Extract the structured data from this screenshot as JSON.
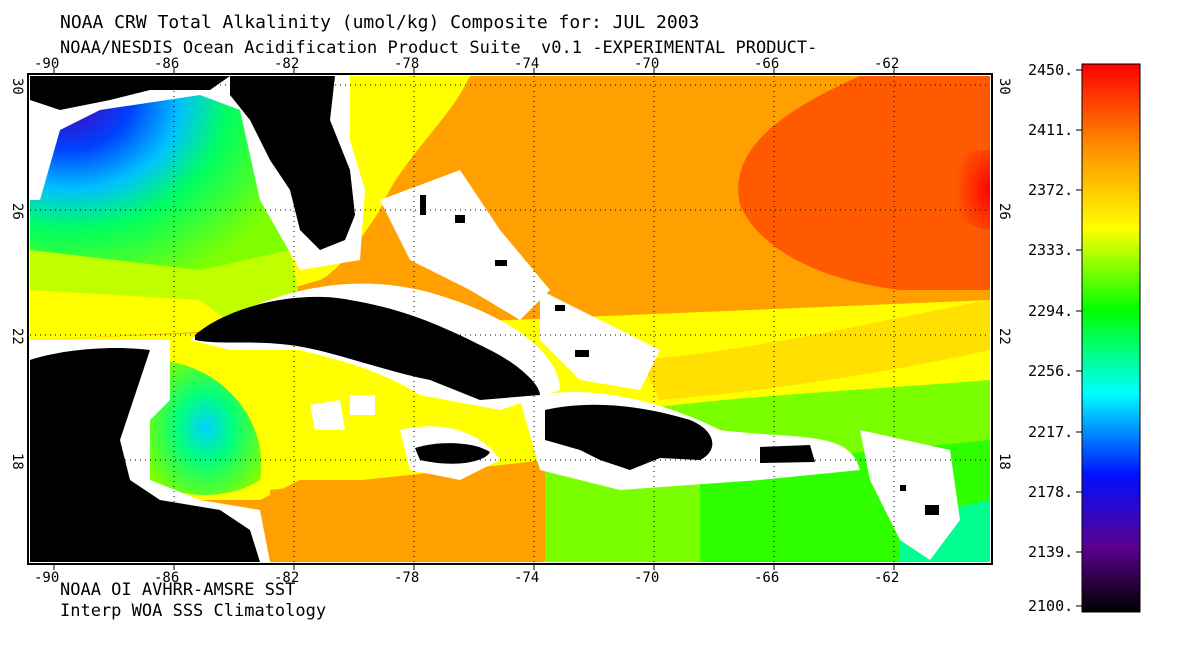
{
  "title": "NOAA CRW Total Alkalinity (umol/kg) Composite for: JUL 2003",
  "subtitle": "NOAA/NESDIS Ocean Acidification Product Suite  v0.1 -EXPERIMENTAL PRODUCT-",
  "footer": [
    "NOAA OI AVHRR-AMSRE SST",
    "Interp WOA SSS Climatology"
  ],
  "map": {
    "lon_ticks": [
      "-90",
      "-86",
      "-82",
      "-78",
      "-74",
      "-70",
      "-66",
      "-62"
    ],
    "lat_ticks": [
      "30",
      "26",
      "22",
      "18"
    ],
    "extent": {
      "lon": [
        -90.5,
        -60.5
      ],
      "lat": [
        14.5,
        30.5
      ]
    },
    "land_color": "#000000",
    "coast_mask_color": "#ffffff",
    "grid": "dotted"
  },
  "colorbar": {
    "labels": [
      "2450.",
      "2411.",
      "2372.",
      "2333.",
      "2294.",
      "2256.",
      "2217.",
      "2178.",
      "2139.",
      "2100."
    ],
    "range": [
      2100,
      2450
    ],
    "colors": [
      "#000000",
      "#5a0090",
      "#0010ff",
      "#00ffff",
      "#00ff00",
      "#ffff00",
      "#ff8c00",
      "#ff0000"
    ]
  }
}
